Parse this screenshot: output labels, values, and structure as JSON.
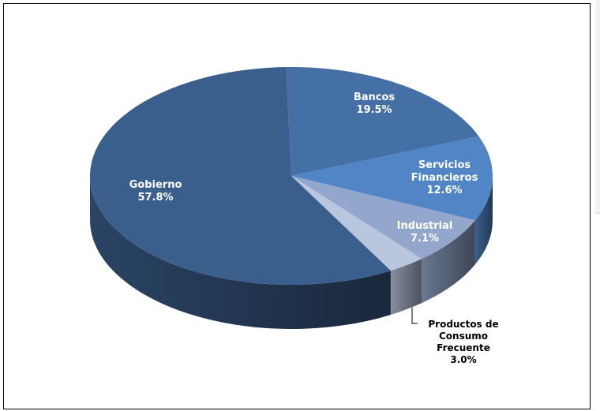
{
  "chart_data": {
    "type": "pie",
    "title": "",
    "slices": [
      {
        "name": "Gobierno",
        "value": 57.8,
        "percent_label": "57.8%",
        "color": "#3b5f8c"
      },
      {
        "name": "Bancos",
        "value": 19.5,
        "percent_label": "19.5%",
        "color": "#4470a6"
      },
      {
        "name": "Servicios Financieros",
        "value": 12.6,
        "percent_label": "12.6%",
        "color": "#5185c6"
      },
      {
        "name": "Industrial",
        "value": 7.1,
        "percent_label": "7.1%",
        "color": "#93a7cc"
      },
      {
        "name": "Productos de Consumo Frecuente",
        "value": 3.0,
        "percent_label": "3.0%",
        "color": "#bac6dd"
      }
    ],
    "labels": {
      "gobierno": [
        "Gobierno"
      ],
      "bancos": [
        "Bancos"
      ],
      "servicios": [
        "Servicios",
        "Financieros"
      ],
      "industrial": [
        "Industrial"
      ],
      "productos": [
        "Productos de",
        "Consumo",
        "Frecuente"
      ]
    },
    "style": "3d",
    "legend": "none",
    "data_labels": "on-slices"
  }
}
